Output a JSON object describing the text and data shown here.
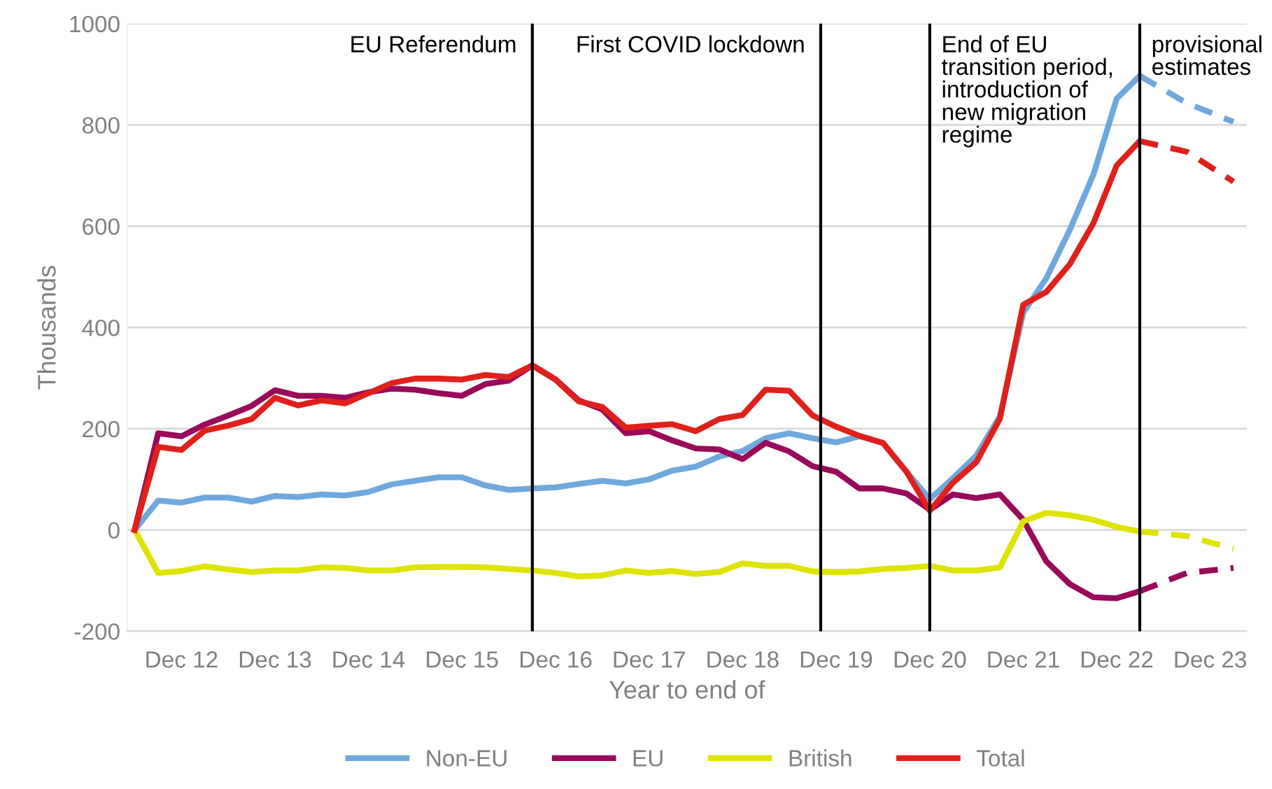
{
  "chart_data": {
    "type": "line",
    "xlabel": "Year to end of",
    "ylabel": "Thousands",
    "x": [
      "2012-06",
      "2012-09",
      "2012-12",
      "2013-03",
      "2013-06",
      "2013-09",
      "2013-12",
      "2014-03",
      "2014-06",
      "2014-09",
      "2014-12",
      "2015-03",
      "2015-06",
      "2015-09",
      "2015-12",
      "2016-03",
      "2016-06",
      "2016-09",
      "2016-12",
      "2017-03",
      "2017-06",
      "2017-09",
      "2017-12",
      "2018-03",
      "2018-06",
      "2018-09",
      "2018-12",
      "2019-03",
      "2019-06",
      "2019-09",
      "2019-12",
      "2020-03",
      "2020-06",
      "2020-09",
      "2020-12",
      "2021-03",
      "2021-06",
      "2021-09",
      "2021-12",
      "2022-03",
      "2022-06",
      "2022-09",
      "2022-12",
      "2023-03"
    ],
    "series": [
      {
        "name": "Non-EU",
        "color": "#6fa8dc",
        "line_style": "solid",
        "values": [
          0,
          58,
          54,
          64,
          64,
          56,
          67,
          65,
          70,
          68,
          75,
          90,
          97,
          104,
          104,
          88,
          79,
          82,
          84,
          91,
          97,
          92,
          100,
          117,
          125,
          145,
          156,
          181,
          191,
          181,
          173,
          185,
          172,
          115,
          61,
          102,
          147,
          225,
          429,
          497,
          593,
          702,
          852,
          897
        ]
      },
      {
        "name": "EU",
        "color": "#990a5a",
        "line_style": "solid",
        "values": [
          0,
          191,
          185,
          208,
          226,
          245,
          276,
          265,
          265,
          261,
          272,
          279,
          277,
          270,
          265,
          288,
          295,
          325,
          297,
          256,
          238,
          191,
          195,
          177,
          161,
          159,
          140,
          172,
          155,
          126,
          115,
          82,
          82,
          72,
          40,
          70,
          63,
          70,
          20,
          -62,
          -107,
          -133,
          -135,
          -121
        ]
      },
      {
        "name": "British",
        "color": "#dfe300",
        "line_style": "solid",
        "values": [
          0,
          -85,
          -81,
          -72,
          -78,
          -83,
          -80,
          -80,
          -74,
          -75,
          -80,
          -80,
          -74,
          -73,
          -73,
          -74,
          -77,
          -80,
          -85,
          -92,
          -90,
          -80,
          -85,
          -81,
          -87,
          -83,
          -66,
          -71,
          -71,
          -82,
          -83,
          -82,
          -77,
          -75,
          -71,
          -80,
          -80,
          -74,
          17,
          34,
          29,
          20,
          6,
          -3
        ]
      },
      {
        "name": "Total",
        "color": "#e0201b",
        "line_style": "solid",
        "values": [
          0,
          164,
          158,
          196,
          206,
          219,
          261,
          246,
          256,
          250,
          270,
          290,
          299,
          299,
          297,
          306,
          302,
          325,
          297,
          254,
          243,
          202,
          206,
          209,
          195,
          219,
          227,
          277,
          275,
          226,
          204,
          186,
          172,
          115,
          38,
          93,
          134,
          220,
          445,
          470,
          525,
          606,
          720,
          768
        ]
      },
      {
        "color": "#6fa8dc",
        "line_style": "dashed",
        "x": [
          "2023-03",
          "2023-09",
          "2024-03"
        ],
        "values": [
          897,
          843,
          806
        ]
      },
      {
        "color": "#990a5a",
        "line_style": "dashed",
        "x": [
          "2023-03",
          "2023-09",
          "2024-03"
        ],
        "values": [
          -121,
          -85,
          -75
        ]
      },
      {
        "color": "#dfe300",
        "line_style": "dashed",
        "x": [
          "2023-03",
          "2023-09",
          "2024-03"
        ],
        "values": [
          -3,
          -12,
          -37
        ]
      },
      {
        "color": "#e0201b",
        "line_style": "dashed",
        "x": [
          "2023-03",
          "2023-09",
          "2024-03"
        ],
        "values": [
          768,
          747,
          688
        ]
      }
    ],
    "ref_lines": [
      {
        "axis": "x",
        "value": "2016-09",
        "label": "EU Referendum",
        "color": "#000000"
      },
      {
        "axis": "x",
        "value": "2019-10-02",
        "label": "First COVID lockdown",
        "color": "#000000"
      },
      {
        "axis": "x",
        "value": "2020-12",
        "label": "End of EU\ntransition period,\nintroduction of\nnew migration\nregime",
        "color": "#000000"
      },
      {
        "axis": "x",
        "value": "2023-03",
        "label": "provisional\nestimates",
        "color": "#000000"
      }
    ],
    "xlim": [
      "2012-05-03",
      "2024-04-21"
    ],
    "xticks": [
      {
        "value": "2012-12",
        "label": "Dec 12"
      },
      {
        "value": "2013-12",
        "label": "Dec 13"
      },
      {
        "value": "2014-12",
        "label": "Dec 14"
      },
      {
        "value": "2015-12",
        "label": "Dec 15"
      },
      {
        "value": "2016-12",
        "label": "Dec 16"
      },
      {
        "value": "2017-12",
        "label": "Dec 17"
      },
      {
        "value": "2018-12",
        "label": "Dec 18"
      },
      {
        "value": "2019-12",
        "label": "Dec 19"
      },
      {
        "value": "2020-12",
        "label": "Dec 20"
      },
      {
        "value": "2021-12",
        "label": "Dec 21"
      },
      {
        "value": "2022-12",
        "label": "Dec 22"
      },
      {
        "value": "2023-12",
        "label": "Dec 23"
      }
    ],
    "ylim": [
      -200,
      1000
    ],
    "yticks": [
      -200,
      0,
      200,
      400,
      600,
      800,
      1000
    ],
    "grid": "y",
    "legend": "bottom",
    "marker": "none"
  }
}
